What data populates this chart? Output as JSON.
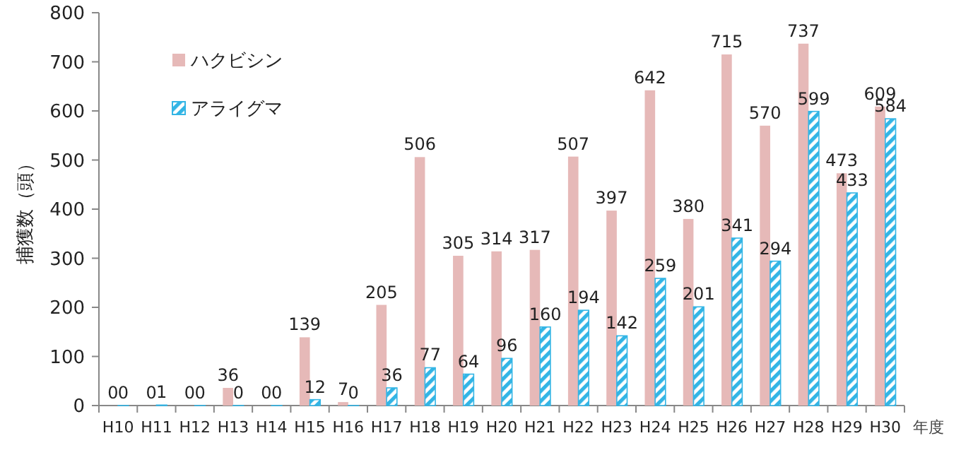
{
  "chart_data": {
    "type": "bar",
    "ylabel": "捕獲数（頭）",
    "xlabel": "年度",
    "categories": [
      "H10",
      "H11",
      "H12",
      "H13",
      "H14",
      "H15",
      "H16",
      "H17",
      "H18",
      "H19",
      "H20",
      "H21",
      "H22",
      "H23",
      "H24",
      "H25",
      "H26",
      "H27",
      "H28",
      "H29",
      "H30"
    ],
    "series": [
      {
        "name": "ハクビシン",
        "color": "#e6b9b8",
        "values": [
          0,
          0,
          0,
          36,
          0,
          139,
          7,
          205,
          506,
          305,
          314,
          317,
          507,
          397,
          642,
          380,
          715,
          570,
          737,
          473,
          609
        ]
      },
      {
        "name": "アライグマ",
        "color": "#33b5e5",
        "values": [
          0,
          1,
          0,
          0,
          0,
          12,
          0,
          36,
          77,
          64,
          96,
          160,
          194,
          142,
          259,
          201,
          341,
          294,
          599,
          433,
          584
        ]
      }
    ],
    "ylim": [
      0,
      800
    ],
    "yticks": [
      0,
      100,
      200,
      300,
      400,
      500,
      600,
      700,
      800
    ],
    "data_labels": true,
    "legend": "top left",
    "grid": false
  }
}
